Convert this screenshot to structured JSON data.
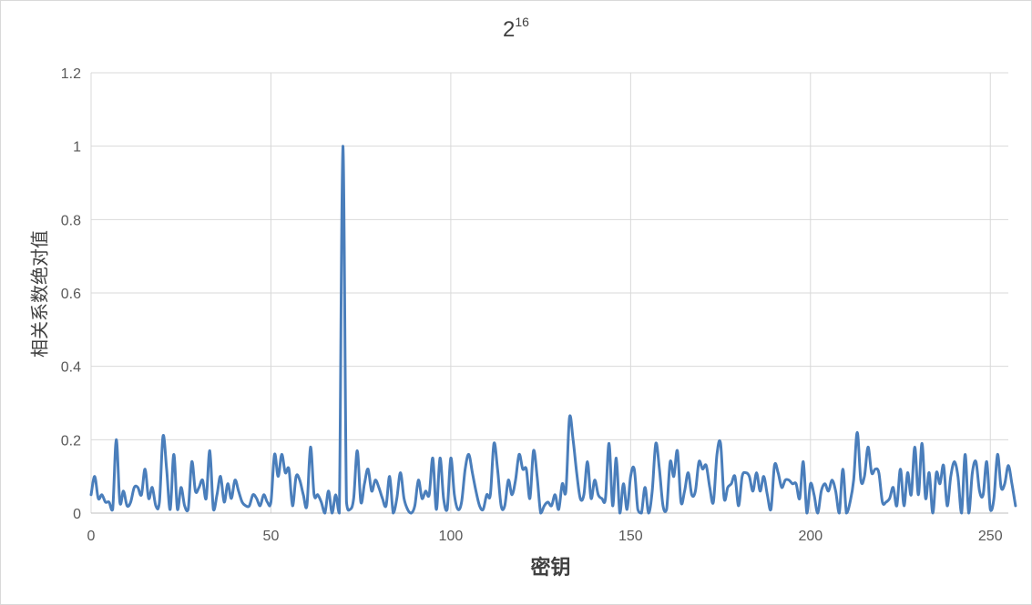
{
  "chart_data": {
    "type": "line",
    "title": {
      "base": "2",
      "exponent": "16"
    },
    "xlabel": "密钥",
    "ylabel": "相关系数绝对值",
    "xlim": [
      0,
      255
    ],
    "ylim": [
      0,
      1.2
    ],
    "x_ticks": [
      "0",
      "50",
      "100",
      "150",
      "200",
      "250"
    ],
    "y_ticks": [
      "0",
      "0.2",
      "0.4",
      "0.6",
      "0.8",
      "1",
      "1.2"
    ],
    "grid": true,
    "legend": "none",
    "line_color": "#4a7ebb",
    "series": [
      {
        "values": [
          0.05,
          0.1,
          0.04,
          0.05,
          0.03,
          0.03,
          0.01,
          0.2,
          0.03,
          0.06,
          0.02,
          0.03,
          0.07,
          0.07,
          0.05,
          0.12,
          0.04,
          0.07,
          0.02,
          0.03,
          0.21,
          0.12,
          0.01,
          0.16,
          0.01,
          0.07,
          0.02,
          0.01,
          0.14,
          0.06,
          0.07,
          0.09,
          0.04,
          0.17,
          0.01,
          0.05,
          0.1,
          0.03,
          0.08,
          0.04,
          0.09,
          0.06,
          0.03,
          0.02,
          0.02,
          0.05,
          0.04,
          0.02,
          0.05,
          0.03,
          0.03,
          0.16,
          0.1,
          0.16,
          0.11,
          0.12,
          0.02,
          0.1,
          0.09,
          0.05,
          0.02,
          0.18,
          0.05,
          0.05,
          0.03,
          0.0,
          0.06,
          0.0,
          0.05,
          0.0,
          1.0,
          0.03,
          0.01,
          0.04,
          0.17,
          0.03,
          0.08,
          0.12,
          0.06,
          0.09,
          0.07,
          0.04,
          0.02,
          0.1,
          0.0,
          0.04,
          0.11,
          0.04,
          0.01,
          0.0,
          0.02,
          0.09,
          0.04,
          0.06,
          0.05,
          0.15,
          0.01,
          0.15,
          0.04,
          0.01,
          0.15,
          0.05,
          0.01,
          0.03,
          0.12,
          0.16,
          0.11,
          0.06,
          0.02,
          0.01,
          0.05,
          0.05,
          0.19,
          0.12,
          0.02,
          0.02,
          0.09,
          0.05,
          0.09,
          0.16,
          0.12,
          0.12,
          0.04,
          0.17,
          0.1,
          0.0,
          0.02,
          0.03,
          0.02,
          0.05,
          0.01,
          0.08,
          0.06,
          0.26,
          0.2,
          0.11,
          0.04,
          0.05,
          0.14,
          0.04,
          0.09,
          0.05,
          0.04,
          0.04,
          0.19,
          0.02,
          0.15,
          0.0,
          0.08,
          0.01,
          0.1,
          0.12,
          0.01,
          0.0,
          0.07,
          0.0,
          0.06,
          0.19,
          0.12,
          0.02,
          0.01,
          0.14,
          0.1,
          0.17,
          0.03,
          0.06,
          0.11,
          0.05,
          0.06,
          0.14,
          0.12,
          0.13,
          0.07,
          0.03,
          0.16,
          0.19,
          0.04,
          0.07,
          0.08,
          0.1,
          0.02,
          0.1,
          0.11,
          0.1,
          0.06,
          0.11,
          0.06,
          0.1,
          0.05,
          0.01,
          0.13,
          0.11,
          0.07,
          0.09,
          0.09,
          0.08,
          0.08,
          0.04,
          0.14,
          0.0,
          0.08,
          0.05,
          0.0,
          0.06,
          0.08,
          0.06,
          0.09,
          0.06,
          0.0,
          0.12,
          0.0,
          0.03,
          0.09,
          0.22,
          0.09,
          0.1,
          0.18,
          0.11,
          0.12,
          0.11,
          0.03,
          0.03,
          0.04,
          0.07,
          0.02,
          0.12,
          0.02,
          0.11,
          0.05,
          0.18,
          0.05,
          0.19,
          0.04,
          0.11,
          0.0,
          0.11,
          0.08,
          0.13,
          0.02,
          0.1,
          0.14,
          0.1,
          0.0,
          0.16,
          0.0,
          0.11,
          0.14,
          0.06,
          0.05,
          0.14,
          0.01,
          0.04,
          0.16,
          0.07,
          0.08,
          0.13,
          0.08,
          0.02
        ]
      }
    ]
  }
}
